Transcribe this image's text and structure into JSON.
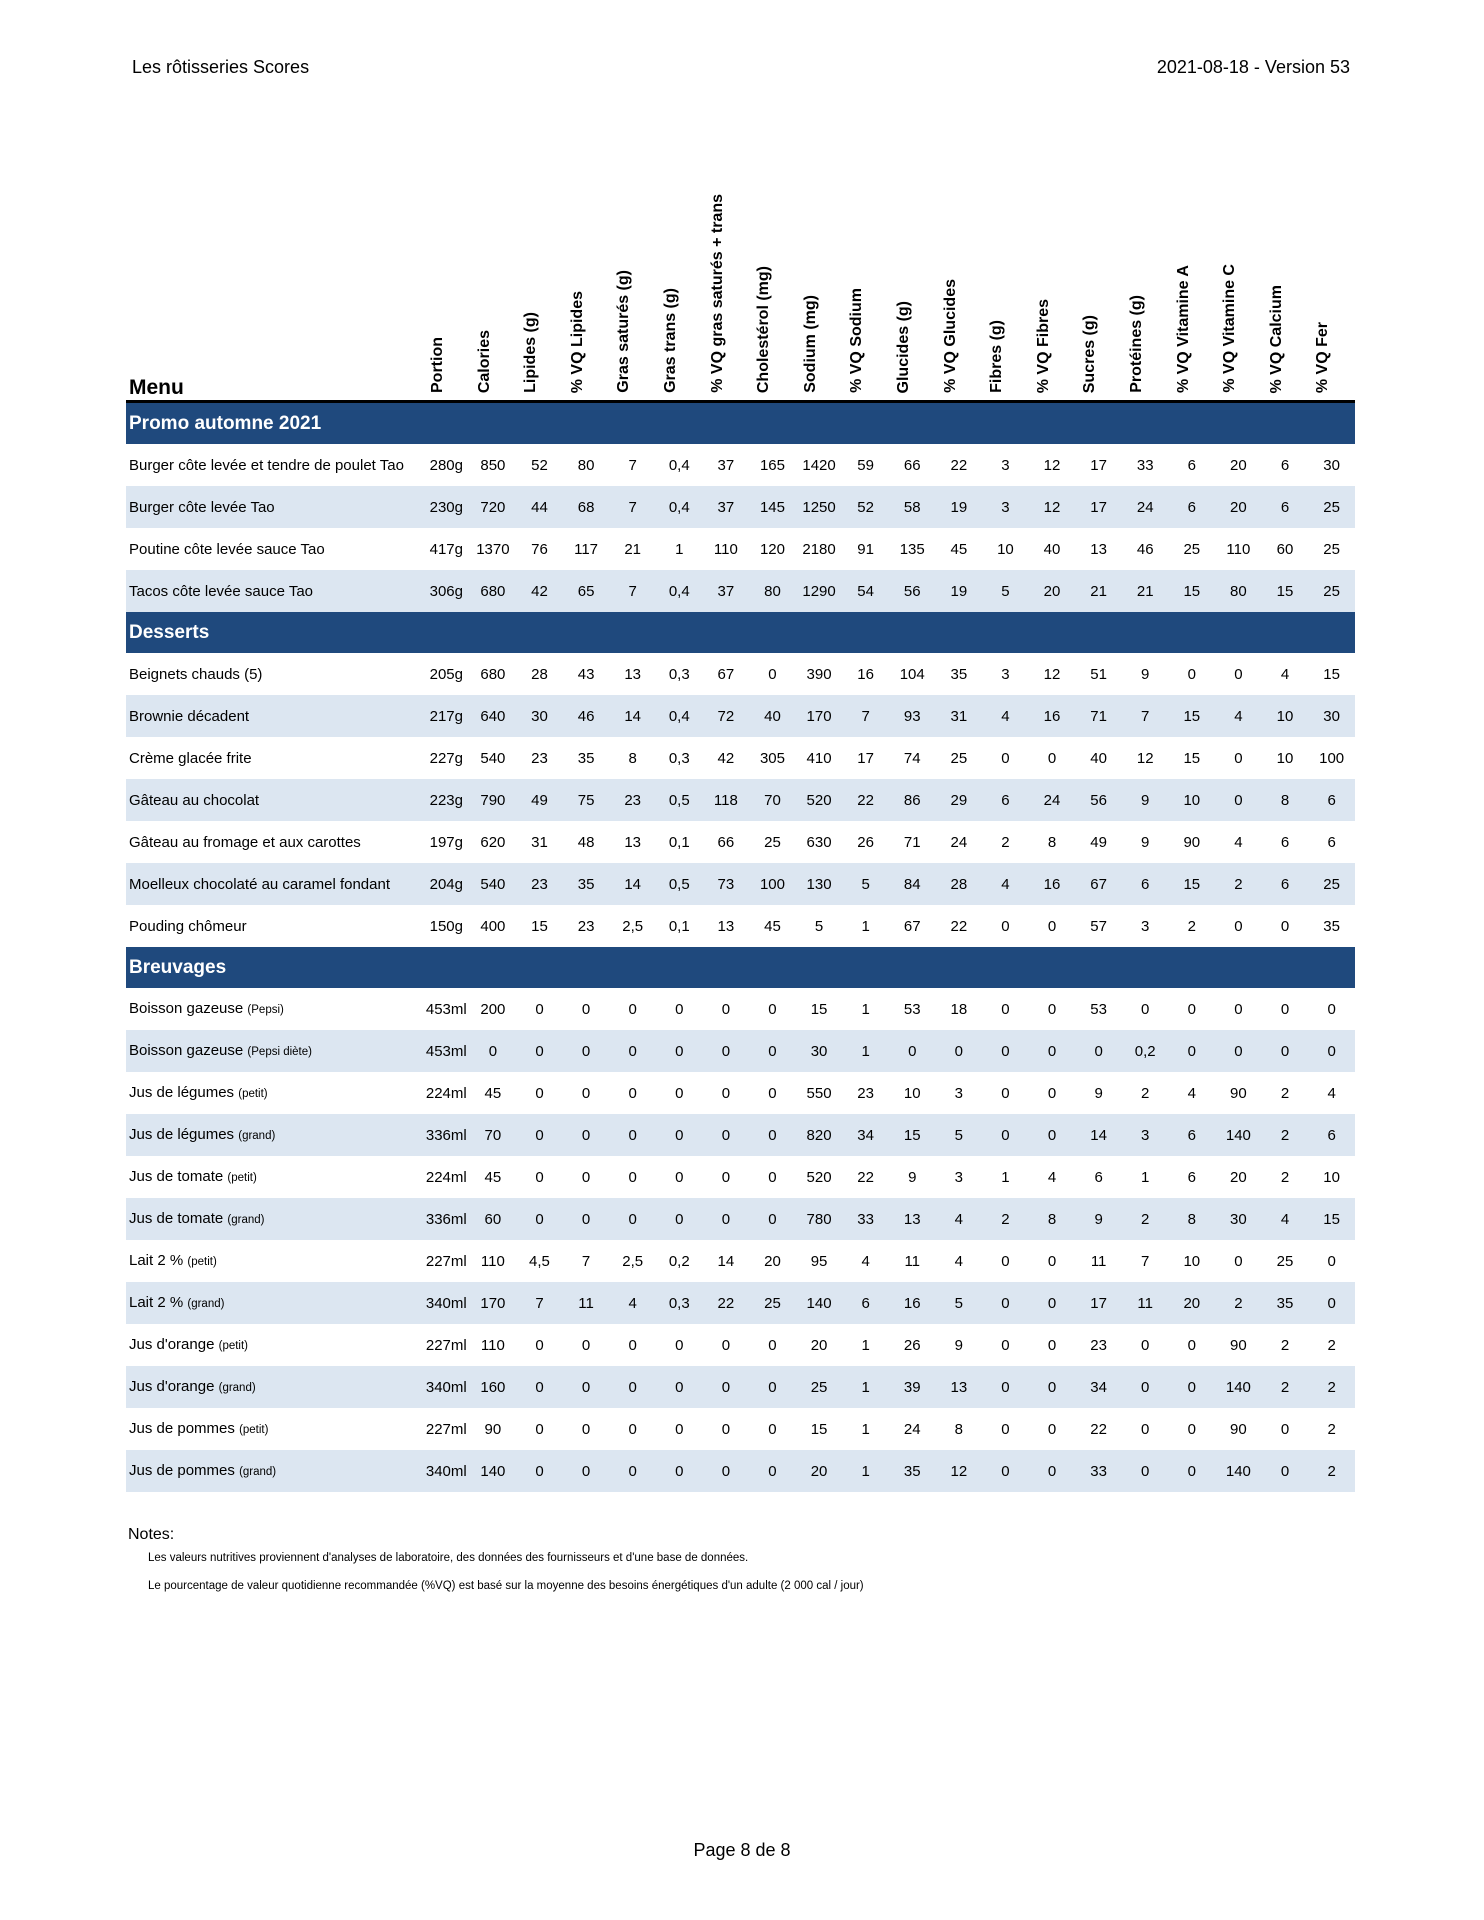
{
  "header": {
    "title": "Les rôtisseries Scores",
    "version": "2021-08-18 - Version 53"
  },
  "table": {
    "menu_label": "Menu",
    "columns": [
      "Portion",
      "Calories",
      "Lipides (g)",
      "% VQ Lipides",
      "Gras saturés (g)",
      "Gras trans (g)",
      "% VQ gras saturés + trans",
      "Cholestérol (mg)",
      "Sodium (mg)",
      "% VQ Sodium",
      "Glucides (g)",
      "% VQ Glucides",
      "Fibres (g)",
      "% VQ Fibres",
      "Sucres (g)",
      "Protéines (g)",
      "% VQ Vitamine A",
      "% VQ Vitamine C",
      "% VQ Calcium",
      "% VQ Fer"
    ],
    "sections": [
      {
        "title": "Promo automne 2021",
        "rows": [
          {
            "name": "Burger côte levée et tendre de poulet Tao",
            "note": "",
            "values": [
              "280g",
              "850",
              "52",
              "80",
              "7",
              "0,4",
              "37",
              "165",
              "1420",
              "59",
              "66",
              "22",
              "3",
              "12",
              "17",
              "33",
              "6",
              "20",
              "6",
              "30"
            ]
          },
          {
            "name": "Burger côte levée Tao",
            "note": "",
            "values": [
              "230g",
              "720",
              "44",
              "68",
              "7",
              "0,4",
              "37",
              "145",
              "1250",
              "52",
              "58",
              "19",
              "3",
              "12",
              "17",
              "24",
              "6",
              "20",
              "6",
              "25"
            ]
          },
          {
            "name": "Poutine côte levée sauce Tao",
            "note": "",
            "values": [
              "417g",
              "1370",
              "76",
              "117",
              "21",
              "1",
              "110",
              "120",
              "2180",
              "91",
              "135",
              "45",
              "10",
              "40",
              "13",
              "46",
              "25",
              "110",
              "60",
              "25"
            ]
          },
          {
            "name": "Tacos côte levée sauce Tao",
            "note": "",
            "values": [
              "306g",
              "680",
              "42",
              "65",
              "7",
              "0,4",
              "37",
              "80",
              "1290",
              "54",
              "56",
              "19",
              "5",
              "20",
              "21",
              "21",
              "15",
              "80",
              "15",
              "25"
            ]
          }
        ]
      },
      {
        "title": "Desserts",
        "rows": [
          {
            "name": "Beignets chauds (5)",
            "note": "",
            "values": [
              "205g",
              "680",
              "28",
              "43",
              "13",
              "0,3",
              "67",
              "0",
              "390",
              "16",
              "104",
              "35",
              "3",
              "12",
              "51",
              "9",
              "0",
              "0",
              "4",
              "15"
            ]
          },
          {
            "name": "Brownie décadent",
            "note": "",
            "values": [
              "217g",
              "640",
              "30",
              "46",
              "14",
              "0,4",
              "72",
              "40",
              "170",
              "7",
              "93",
              "31",
              "4",
              "16",
              "71",
              "7",
              "15",
              "4",
              "10",
              "30"
            ]
          },
          {
            "name": "Crème glacée frite",
            "note": "",
            "values": [
              "227g",
              "540",
              "23",
              "35",
              "8",
              "0,3",
              "42",
              "305",
              "410",
              "17",
              "74",
              "25",
              "0",
              "0",
              "40",
              "12",
              "15",
              "0",
              "10",
              "100"
            ]
          },
          {
            "name": "Gâteau au chocolat",
            "note": "",
            "values": [
              "223g",
              "790",
              "49",
              "75",
              "23",
              "0,5",
              "118",
              "70",
              "520",
              "22",
              "86",
              "29",
              "6",
              "24",
              "56",
              "9",
              "10",
              "0",
              "8",
              "6"
            ]
          },
          {
            "name": "Gâteau au fromage et aux carottes",
            "note": "",
            "values": [
              "197g",
              "620",
              "31",
              "48",
              "13",
              "0,1",
              "66",
              "25",
              "630",
              "26",
              "71",
              "24",
              "2",
              "8",
              "49",
              "9",
              "90",
              "4",
              "6",
              "6"
            ]
          },
          {
            "name": "Moelleux chocolaté au caramel fondant",
            "note": "",
            "values": [
              "204g",
              "540",
              "23",
              "35",
              "14",
              "0,5",
              "73",
              "100",
              "130",
              "5",
              "84",
              "28",
              "4",
              "16",
              "67",
              "6",
              "15",
              "2",
              "6",
              "25"
            ]
          },
          {
            "name": "Pouding chômeur",
            "note": "",
            "values": [
              "150g",
              "400",
              "15",
              "23",
              "2,5",
              "0,1",
              "13",
              "45",
              "5",
              "1",
              "67",
              "22",
              "0",
              "0",
              "57",
              "3",
              "2",
              "0",
              "0",
              "35"
            ]
          }
        ]
      },
      {
        "title": "Breuvages",
        "rows": [
          {
            "name": "Boisson gazeuse",
            "note": "(Pepsi)",
            "values": [
              "453ml",
              "200",
              "0",
              "0",
              "0",
              "0",
              "0",
              "0",
              "15",
              "1",
              "53",
              "18",
              "0",
              "0",
              "53",
              "0",
              "0",
              "0",
              "0",
              "0"
            ]
          },
          {
            "name": "Boisson gazeuse",
            "note": "(Pepsi diète)",
            "values": [
              "453ml",
              "0",
              "0",
              "0",
              "0",
              "0",
              "0",
              "0",
              "30",
              "1",
              "0",
              "0",
              "0",
              "0",
              "0",
              "0,2",
              "0",
              "0",
              "0",
              "0"
            ]
          },
          {
            "name": "Jus de légumes",
            "note": "(petit)",
            "values": [
              "224ml",
              "45",
              "0",
              "0",
              "0",
              "0",
              "0",
              "0",
              "550",
              "23",
              "10",
              "3",
              "0",
              "0",
              "9",
              "2",
              "4",
              "90",
              "2",
              "4"
            ]
          },
          {
            "name": "Jus de légumes",
            "note": "(grand)",
            "values": [
              "336ml",
              "70",
              "0",
              "0",
              "0",
              "0",
              "0",
              "0",
              "820",
              "34",
              "15",
              "5",
              "0",
              "0",
              "14",
              "3",
              "6",
              "140",
              "2",
              "6"
            ]
          },
          {
            "name": "Jus de tomate",
            "note": "(petit)",
            "values": [
              "224ml",
              "45",
              "0",
              "0",
              "0",
              "0",
              "0",
              "0",
              "520",
              "22",
              "9",
              "3",
              "1",
              "4",
              "6",
              "1",
              "6",
              "20",
              "2",
              "10"
            ]
          },
          {
            "name": "Jus de tomate",
            "note": "(grand)",
            "values": [
              "336ml",
              "60",
              "0",
              "0",
              "0",
              "0",
              "0",
              "0",
              "780",
              "33",
              "13",
              "4",
              "2",
              "8",
              "9",
              "2",
              "8",
              "30",
              "4",
              "15"
            ]
          },
          {
            "name": "Lait 2 %",
            "note": "(petit)",
            "values": [
              "227ml",
              "110",
              "4,5",
              "7",
              "2,5",
              "0,2",
              "14",
              "20",
              "95",
              "4",
              "11",
              "4",
              "0",
              "0",
              "11",
              "7",
              "10",
              "0",
              "25",
              "0"
            ]
          },
          {
            "name": "Lait 2 %",
            "note": "(grand)",
            "values": [
              "340ml",
              "170",
              "7",
              "11",
              "4",
              "0,3",
              "22",
              "25",
              "140",
              "6",
              "16",
              "5",
              "0",
              "0",
              "17",
              "11",
              "20",
              "2",
              "35",
              "0"
            ]
          },
          {
            "name": "Jus d'orange",
            "note": "(petit)",
            "values": [
              "227ml",
              "110",
              "0",
              "0",
              "0",
              "0",
              "0",
              "0",
              "20",
              "1",
              "26",
              "9",
              "0",
              "0",
              "23",
              "0",
              "0",
              "90",
              "2",
              "2"
            ]
          },
          {
            "name": "Jus d'orange",
            "note": "(grand)",
            "values": [
              "340ml",
              "160",
              "0",
              "0",
              "0",
              "0",
              "0",
              "0",
              "25",
              "1",
              "39",
              "13",
              "0",
              "0",
              "34",
              "0",
              "0",
              "140",
              "2",
              "2"
            ]
          },
          {
            "name": "Jus de pommes",
            "note": "(petit)",
            "values": [
              "227ml",
              "90",
              "0",
              "0",
              "0",
              "0",
              "0",
              "0",
              "15",
              "1",
              "24",
              "8",
              "0",
              "0",
              "22",
              "0",
              "0",
              "90",
              "0",
              "2"
            ]
          },
          {
            "name": "Jus de pommes",
            "note": "(grand)",
            "values": [
              "340ml",
              "140",
              "0",
              "0",
              "0",
              "0",
              "0",
              "0",
              "20",
              "1",
              "35",
              "12",
              "0",
              "0",
              "33",
              "0",
              "0",
              "140",
              "0",
              "2"
            ]
          }
        ]
      }
    ]
  },
  "notes": {
    "title": "Notes:",
    "items": [
      "Les valeurs nutritives proviennent d'analyses de laboratoire, des données des fournisseurs et d'une base de données.",
      "Le pourcentage de valeur quotidienne recommandée (%VQ) est basé sur la moyenne des besoins énergétiques d'un adulte (2 000 cal / jour)"
    ]
  },
  "footer": {
    "page": "Page 8 de 8"
  },
  "colors": {
    "section_bg": "#1f497d",
    "stripe": "#dce6f1"
  }
}
